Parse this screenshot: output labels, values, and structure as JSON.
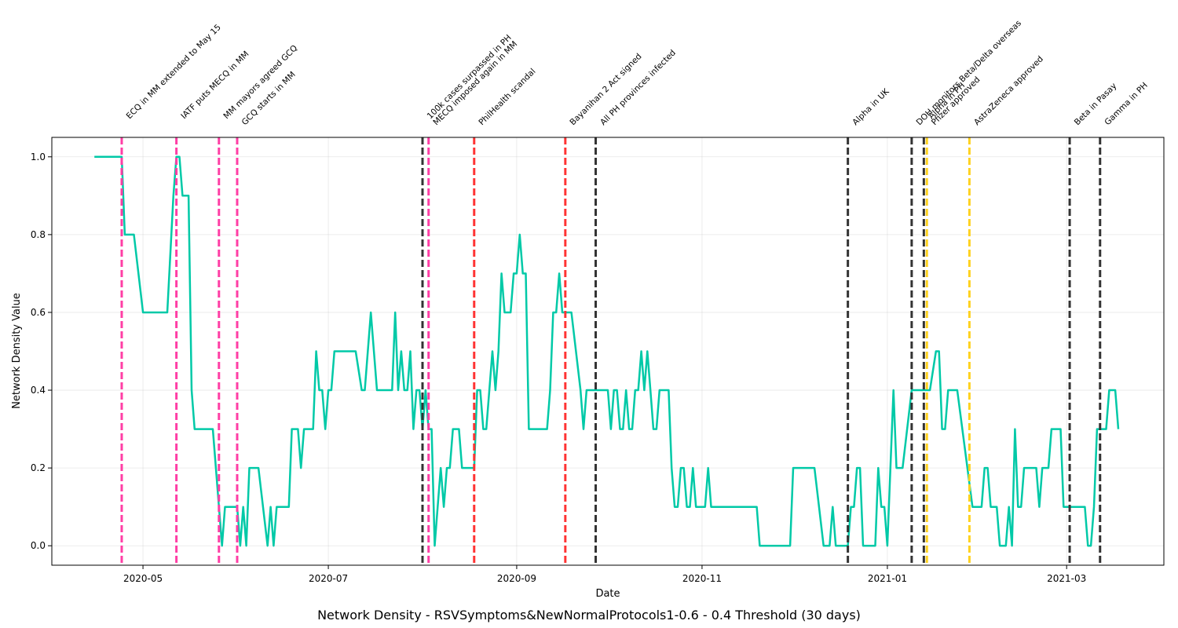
{
  "chart_data": {
    "type": "line",
    "title": "Network Density - RSVSymptoms&NewNormalProtocols1-0.6 - 0.4 Threshold (30 days)",
    "xlabel": "Date",
    "ylabel": "Network Density Value",
    "xlim": [
      "2020-04-01",
      "2021-04-02"
    ],
    "ylim": [
      -0.05,
      1.05
    ],
    "grid": true,
    "x_ticks": [
      "2020-05-01",
      "2020-07-01",
      "2020-09-01",
      "2020-11-01",
      "2021-01-01",
      "2021-03-01"
    ],
    "x_tick_labels": [
      "2020-05",
      "2020-07",
      "2020-09",
      "2020-11",
      "2021-01",
      "2021-03"
    ],
    "y_ticks": [
      0.0,
      0.2,
      0.4,
      0.6,
      0.8,
      1.0
    ],
    "y_tick_labels": [
      "0.0",
      "0.2",
      "0.4",
      "0.6",
      "0.8",
      "1.0"
    ],
    "series": [
      {
        "color": "#00c9a7",
        "points": [
          [
            "2020-04-15",
            1.0
          ],
          [
            "2020-04-24",
            1.0
          ],
          [
            "2020-04-25",
            0.8
          ],
          [
            "2020-04-28",
            0.8
          ],
          [
            "2020-05-01",
            0.6
          ],
          [
            "2020-05-09",
            0.6
          ],
          [
            "2020-05-11",
            0.9
          ],
          [
            "2020-05-12",
            1.0
          ],
          [
            "2020-05-13",
            1.0
          ],
          [
            "2020-05-14",
            0.9
          ],
          [
            "2020-05-16",
            0.9
          ],
          [
            "2020-05-17",
            0.4
          ],
          [
            "2020-05-18",
            0.3
          ],
          [
            "2020-05-24",
            0.3
          ],
          [
            "2020-05-27",
            0.0
          ],
          [
            "2020-05-28",
            0.1
          ],
          [
            "2020-06-01",
            0.1
          ],
          [
            "2020-06-02",
            0.0
          ],
          [
            "2020-06-03",
            0.1
          ],
          [
            "2020-06-04",
            0.0
          ],
          [
            "2020-06-05",
            0.2
          ],
          [
            "2020-06-08",
            0.2
          ],
          [
            "2020-06-11",
            0.0
          ],
          [
            "2020-06-12",
            0.1
          ],
          [
            "2020-06-13",
            0.0
          ],
          [
            "2020-06-14",
            0.1
          ],
          [
            "2020-06-18",
            0.1
          ],
          [
            "2020-06-19",
            0.3
          ],
          [
            "2020-06-21",
            0.3
          ],
          [
            "2020-06-22",
            0.2
          ],
          [
            "2020-06-23",
            0.3
          ],
          [
            "2020-06-26",
            0.3
          ],
          [
            "2020-06-27",
            0.5
          ],
          [
            "2020-06-28",
            0.4
          ],
          [
            "2020-06-29",
            0.4
          ],
          [
            "2020-06-30",
            0.3
          ],
          [
            "2020-07-01",
            0.4
          ],
          [
            "2020-07-02",
            0.4
          ],
          [
            "2020-07-03",
            0.5
          ],
          [
            "2020-07-10",
            0.5
          ],
          [
            "2020-07-12",
            0.4
          ],
          [
            "2020-07-13",
            0.4
          ],
          [
            "2020-07-15",
            0.6
          ],
          [
            "2020-07-17",
            0.4
          ],
          [
            "2020-07-22",
            0.4
          ],
          [
            "2020-07-23",
            0.6
          ],
          [
            "2020-07-24",
            0.4
          ],
          [
            "2020-07-25",
            0.5
          ],
          [
            "2020-07-26",
            0.4
          ],
          [
            "2020-07-27",
            0.4
          ],
          [
            "2020-07-28",
            0.5
          ],
          [
            "2020-07-29",
            0.3
          ],
          [
            "2020-07-30",
            0.4
          ],
          [
            "2020-07-31",
            0.4
          ],
          [
            "2020-08-01",
            0.3
          ],
          [
            "2020-08-02",
            0.4
          ],
          [
            "2020-08-03",
            0.3
          ],
          [
            "2020-08-04",
            0.3
          ],
          [
            "2020-08-05",
            0.0
          ],
          [
            "2020-08-06",
            0.1
          ],
          [
            "2020-08-07",
            0.2
          ],
          [
            "2020-08-08",
            0.1
          ],
          [
            "2020-08-09",
            0.2
          ],
          [
            "2020-08-10",
            0.2
          ],
          [
            "2020-08-11",
            0.3
          ],
          [
            "2020-08-13",
            0.3
          ],
          [
            "2020-08-14",
            0.2
          ],
          [
            "2020-08-18",
            0.2
          ],
          [
            "2020-08-19",
            0.4
          ],
          [
            "2020-08-20",
            0.4
          ],
          [
            "2020-08-21",
            0.3
          ],
          [
            "2020-08-22",
            0.3
          ],
          [
            "2020-08-24",
            0.5
          ],
          [
            "2020-08-25",
            0.4
          ],
          [
            "2020-08-26",
            0.5
          ],
          [
            "2020-08-27",
            0.7
          ],
          [
            "2020-08-28",
            0.6
          ],
          [
            "2020-08-30",
            0.6
          ],
          [
            "2020-08-31",
            0.7
          ],
          [
            "2020-09-01",
            0.7
          ],
          [
            "2020-09-02",
            0.8
          ],
          [
            "2020-09-03",
            0.7
          ],
          [
            "2020-09-04",
            0.7
          ],
          [
            "2020-09-05",
            0.3
          ],
          [
            "2020-09-11",
            0.3
          ],
          [
            "2020-09-12",
            0.4
          ],
          [
            "2020-09-13",
            0.6
          ],
          [
            "2020-09-14",
            0.6
          ],
          [
            "2020-09-15",
            0.7
          ],
          [
            "2020-09-16",
            0.6
          ],
          [
            "2020-09-19",
            0.6
          ],
          [
            "2020-09-22",
            0.4
          ],
          [
            "2020-09-23",
            0.3
          ],
          [
            "2020-09-24",
            0.4
          ],
          [
            "2020-10-01",
            0.4
          ],
          [
            "2020-10-02",
            0.3
          ],
          [
            "2020-10-03",
            0.4
          ],
          [
            "2020-10-04",
            0.4
          ],
          [
            "2020-10-05",
            0.3
          ],
          [
            "2020-10-06",
            0.3
          ],
          [
            "2020-10-07",
            0.4
          ],
          [
            "2020-10-08",
            0.3
          ],
          [
            "2020-10-09",
            0.3
          ],
          [
            "2020-10-10",
            0.4
          ],
          [
            "2020-10-11",
            0.4
          ],
          [
            "2020-10-12",
            0.5
          ],
          [
            "2020-10-13",
            0.4
          ],
          [
            "2020-10-14",
            0.5
          ],
          [
            "2020-10-15",
            0.4
          ],
          [
            "2020-10-16",
            0.3
          ],
          [
            "2020-10-17",
            0.3
          ],
          [
            "2020-10-18",
            0.4
          ],
          [
            "2020-10-21",
            0.4
          ],
          [
            "2020-10-22",
            0.2
          ],
          [
            "2020-10-23",
            0.1
          ],
          [
            "2020-10-24",
            0.1
          ],
          [
            "2020-10-25",
            0.2
          ],
          [
            "2020-10-26",
            0.2
          ],
          [
            "2020-10-27",
            0.1
          ],
          [
            "2020-10-28",
            0.1
          ],
          [
            "2020-10-29",
            0.2
          ],
          [
            "2020-10-30",
            0.1
          ],
          [
            "2020-11-02",
            0.1
          ],
          [
            "2020-11-03",
            0.2
          ],
          [
            "2020-11-04",
            0.1
          ],
          [
            "2020-11-19",
            0.1
          ],
          [
            "2020-11-20",
            0.0
          ],
          [
            "2020-11-30",
            0.0
          ],
          [
            "2020-12-01",
            0.2
          ],
          [
            "2020-12-08",
            0.2
          ],
          [
            "2020-12-11",
            0.0
          ],
          [
            "2020-12-13",
            0.0
          ],
          [
            "2020-12-14",
            0.1
          ],
          [
            "2020-12-15",
            0.0
          ],
          [
            "2020-12-19",
            0.0
          ],
          [
            "2020-12-20",
            0.1
          ],
          [
            "2020-12-21",
            0.1
          ],
          [
            "2020-12-22",
            0.2
          ],
          [
            "2020-12-23",
            0.2
          ],
          [
            "2020-12-24",
            0.0
          ],
          [
            "2020-12-28",
            0.0
          ],
          [
            "2020-12-29",
            0.2
          ],
          [
            "2020-12-30",
            0.1
          ],
          [
            "2020-12-31",
            0.1
          ],
          [
            "2021-01-01",
            0.0
          ],
          [
            "2021-01-03",
            0.4
          ],
          [
            "2021-01-04",
            0.2
          ],
          [
            "2021-01-06",
            0.2
          ],
          [
            "2021-01-09",
            0.4
          ],
          [
            "2021-01-15",
            0.4
          ],
          [
            "2021-01-17",
            0.5
          ],
          [
            "2021-01-18",
            0.5
          ],
          [
            "2021-01-19",
            0.3
          ],
          [
            "2021-01-20",
            0.3
          ],
          [
            "2021-01-21",
            0.4
          ],
          [
            "2021-01-24",
            0.4
          ],
          [
            "2021-01-29",
            0.1
          ],
          [
            "2021-02-01",
            0.1
          ],
          [
            "2021-02-02",
            0.2
          ],
          [
            "2021-02-03",
            0.2
          ],
          [
            "2021-02-04",
            0.1
          ],
          [
            "2021-02-06",
            0.1
          ],
          [
            "2021-02-07",
            0.0
          ],
          [
            "2021-02-09",
            0.0
          ],
          [
            "2021-02-10",
            0.1
          ],
          [
            "2021-02-11",
            0.0
          ],
          [
            "2021-02-12",
            0.3
          ],
          [
            "2021-02-13",
            0.1
          ],
          [
            "2021-02-14",
            0.1
          ],
          [
            "2021-02-15",
            0.2
          ],
          [
            "2021-02-19",
            0.2
          ],
          [
            "2021-02-20",
            0.1
          ],
          [
            "2021-02-21",
            0.2
          ],
          [
            "2021-02-23",
            0.2
          ],
          [
            "2021-02-24",
            0.3
          ],
          [
            "2021-02-27",
            0.3
          ],
          [
            "2021-02-28",
            0.1
          ],
          [
            "2021-03-07",
            0.1
          ],
          [
            "2021-03-08",
            0.0
          ],
          [
            "2021-03-09",
            0.0
          ],
          [
            "2021-03-10",
            0.1
          ],
          [
            "2021-03-11",
            0.3
          ],
          [
            "2021-03-14",
            0.3
          ],
          [
            "2021-03-15",
            0.4
          ],
          [
            "2021-03-17",
            0.4
          ],
          [
            "2021-03-18",
            0.3
          ]
        ]
      }
    ],
    "events": [
      {
        "date": "2020-04-24",
        "label": "ECQ in MM extended to May 15",
        "color": "#ff3ea5",
        "tier": 1
      },
      {
        "date": "2020-05-12",
        "label": "IATF puts MECQ in MM",
        "color": "#ff3ea5",
        "tier": 1
      },
      {
        "date": "2020-05-26",
        "label": "MM mayors agreed GCQ",
        "color": "#ff3ea5",
        "tier": 1
      },
      {
        "date": "2020-06-01",
        "label": "GCQ starts in MM",
        "color": "#ff3ea5",
        "tier": 0
      },
      {
        "date": "2020-08-01",
        "label": "100k cases surpassed in PH",
        "color": "#333333",
        "tier": 1
      },
      {
        "date": "2020-08-03",
        "label": "MECQ imposed again in MM",
        "color": "#ff3ea5",
        "tier": 0
      },
      {
        "date": "2020-08-18",
        "label": "PhilHealth scandal",
        "color": "#ff3333",
        "tier": 0
      },
      {
        "date": "2020-09-17",
        "label": "Bayanihan 2 Act signed",
        "color": "#ff3333",
        "tier": 0
      },
      {
        "date": "2020-09-27",
        "label": "All PH provinces infected",
        "color": "#333333",
        "tier": 0
      },
      {
        "date": "2020-12-19",
        "label": "Alpha in UK",
        "color": "#333333",
        "tier": 0
      },
      {
        "date": "2021-01-09",
        "label": "DOH monitors Beta/Delta overseas",
        "color": "#333333",
        "tier": 0
      },
      {
        "date": "2021-01-13",
        "label": "Alpha in PH",
        "color": "#333333",
        "tier": 1
      },
      {
        "date": "2021-01-14",
        "label": "Pfizer approved",
        "color": "#ffd21f",
        "tier": 0
      },
      {
        "date": "2021-01-28",
        "label": "AstraZeneca approved",
        "color": "#ffd21f",
        "tier": 0
      },
      {
        "date": "2021-03-02",
        "label": "Beta in Pasay",
        "color": "#333333",
        "tier": 0
      },
      {
        "date": "2021-03-12",
        "label": "Gamma in PH",
        "color": "#333333",
        "tier": 0
      }
    ]
  }
}
